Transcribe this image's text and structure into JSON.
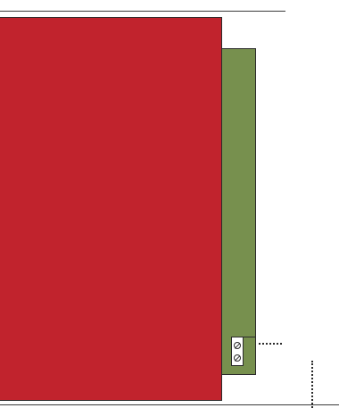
{
  "diagram": {
    "colors": {
      "red_panel": "#c1232d",
      "green_panel": "#77904e",
      "outline": "#2b2b2b",
      "terminal_block": "#ffffff"
    },
    "parts": {
      "terminal_block": {
        "screws": [
          "screw-icon",
          "screw-icon"
        ]
      }
    }
  }
}
